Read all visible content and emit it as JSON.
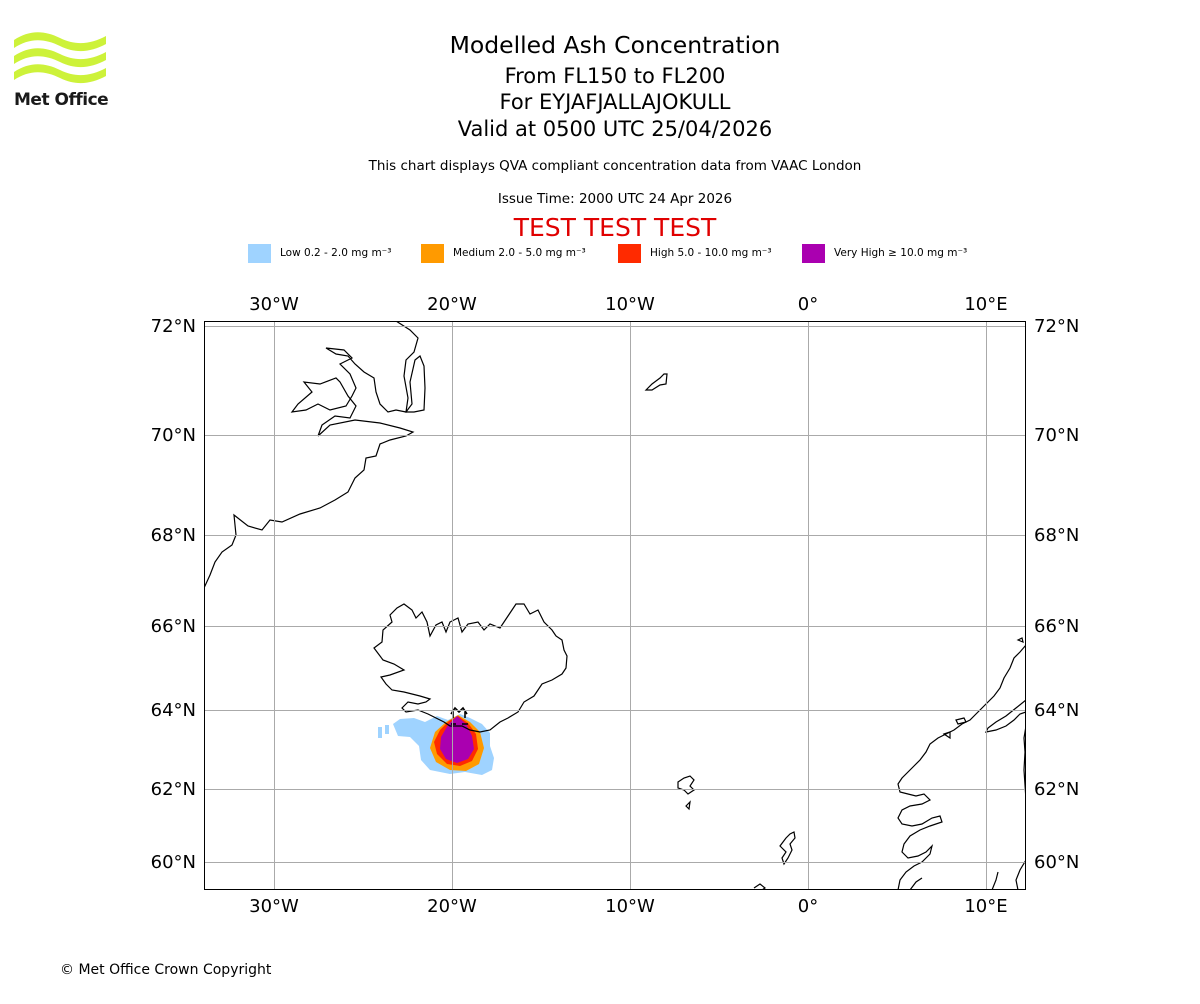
{
  "logo": {
    "text": "Met Office",
    "color": "#cdf23a"
  },
  "header": {
    "title": "Modelled Ash Concentration",
    "levels": "From FL150 to FL200",
    "volcano": "For EYJAFJALLAJOKULL",
    "valid": "Valid at 0500 UTC 25/04/2026",
    "description": "This chart displays QVA compliant concentration data from VAAC London",
    "issue_time": "Issue Time: 2000 UTC 24 Apr 2026",
    "test_banner": "TEST TEST TEST"
  },
  "legend": [
    {
      "label": "Low 0.2 - 2.0 mg m⁻³",
      "color": "#9fd3ff"
    },
    {
      "label": "Medium 2.0 - 5.0 mg m⁻³",
      "color": "#ff9a00"
    },
    {
      "label": "High 5.0 - 10.0 mg m⁻³",
      "color": "#ff2a00"
    },
    {
      "label": "Very High ≥ 10.0 mg m⁻³",
      "color": "#aa00b0"
    }
  ],
  "map": {
    "lon_labels": [
      "30°W",
      "20°W",
      "10°W",
      "0°",
      "10°E"
    ],
    "lat_labels": [
      "72°N",
      "70°N",
      "68°N",
      "66°N",
      "64°N",
      "62°N",
      "60°N"
    ],
    "lon_values": [
      -30,
      -20,
      -10,
      0,
      10
    ],
    "lat_values": [
      72,
      70,
      68,
      66,
      64,
      62,
      60
    ],
    "extent": {
      "lon_min": -34,
      "lon_max": 12,
      "lat_min": 59.4,
      "lat_max": 72.1
    },
    "volcano_location": {
      "lat": 63.63,
      "lon": -19.62
    },
    "gridline_color": "#aaaaaa"
  },
  "footer": {
    "copyright": "© Met Office Crown Copyright"
  }
}
